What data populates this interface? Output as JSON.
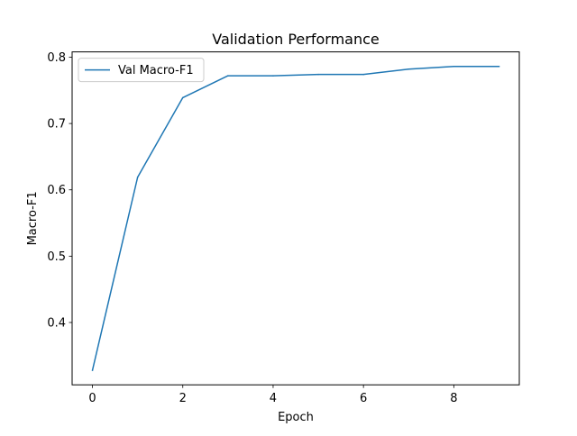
{
  "chart_data": {
    "type": "line",
    "title": "Validation Performance",
    "xlabel": "Epoch",
    "ylabel": "Macro-F1",
    "xlim": [
      -0.45,
      9.45
    ],
    "ylim": [
      0.306,
      0.808
    ],
    "xticks": [
      0,
      2,
      4,
      6,
      8
    ],
    "yticks": [
      0.4,
      0.5,
      0.6,
      0.7,
      0.8
    ],
    "grid": false,
    "legend": {
      "position": "top-left"
    },
    "series": [
      {
        "name": "Val Macro-F1",
        "color": "#1f77b4",
        "x": [
          0,
          1,
          2,
          3,
          4,
          5,
          6,
          7,
          8,
          9
        ],
        "y": [
          0.328,
          0.619,
          0.739,
          0.772,
          0.772,
          0.774,
          0.774,
          0.782,
          0.786,
          0.786
        ]
      }
    ]
  }
}
